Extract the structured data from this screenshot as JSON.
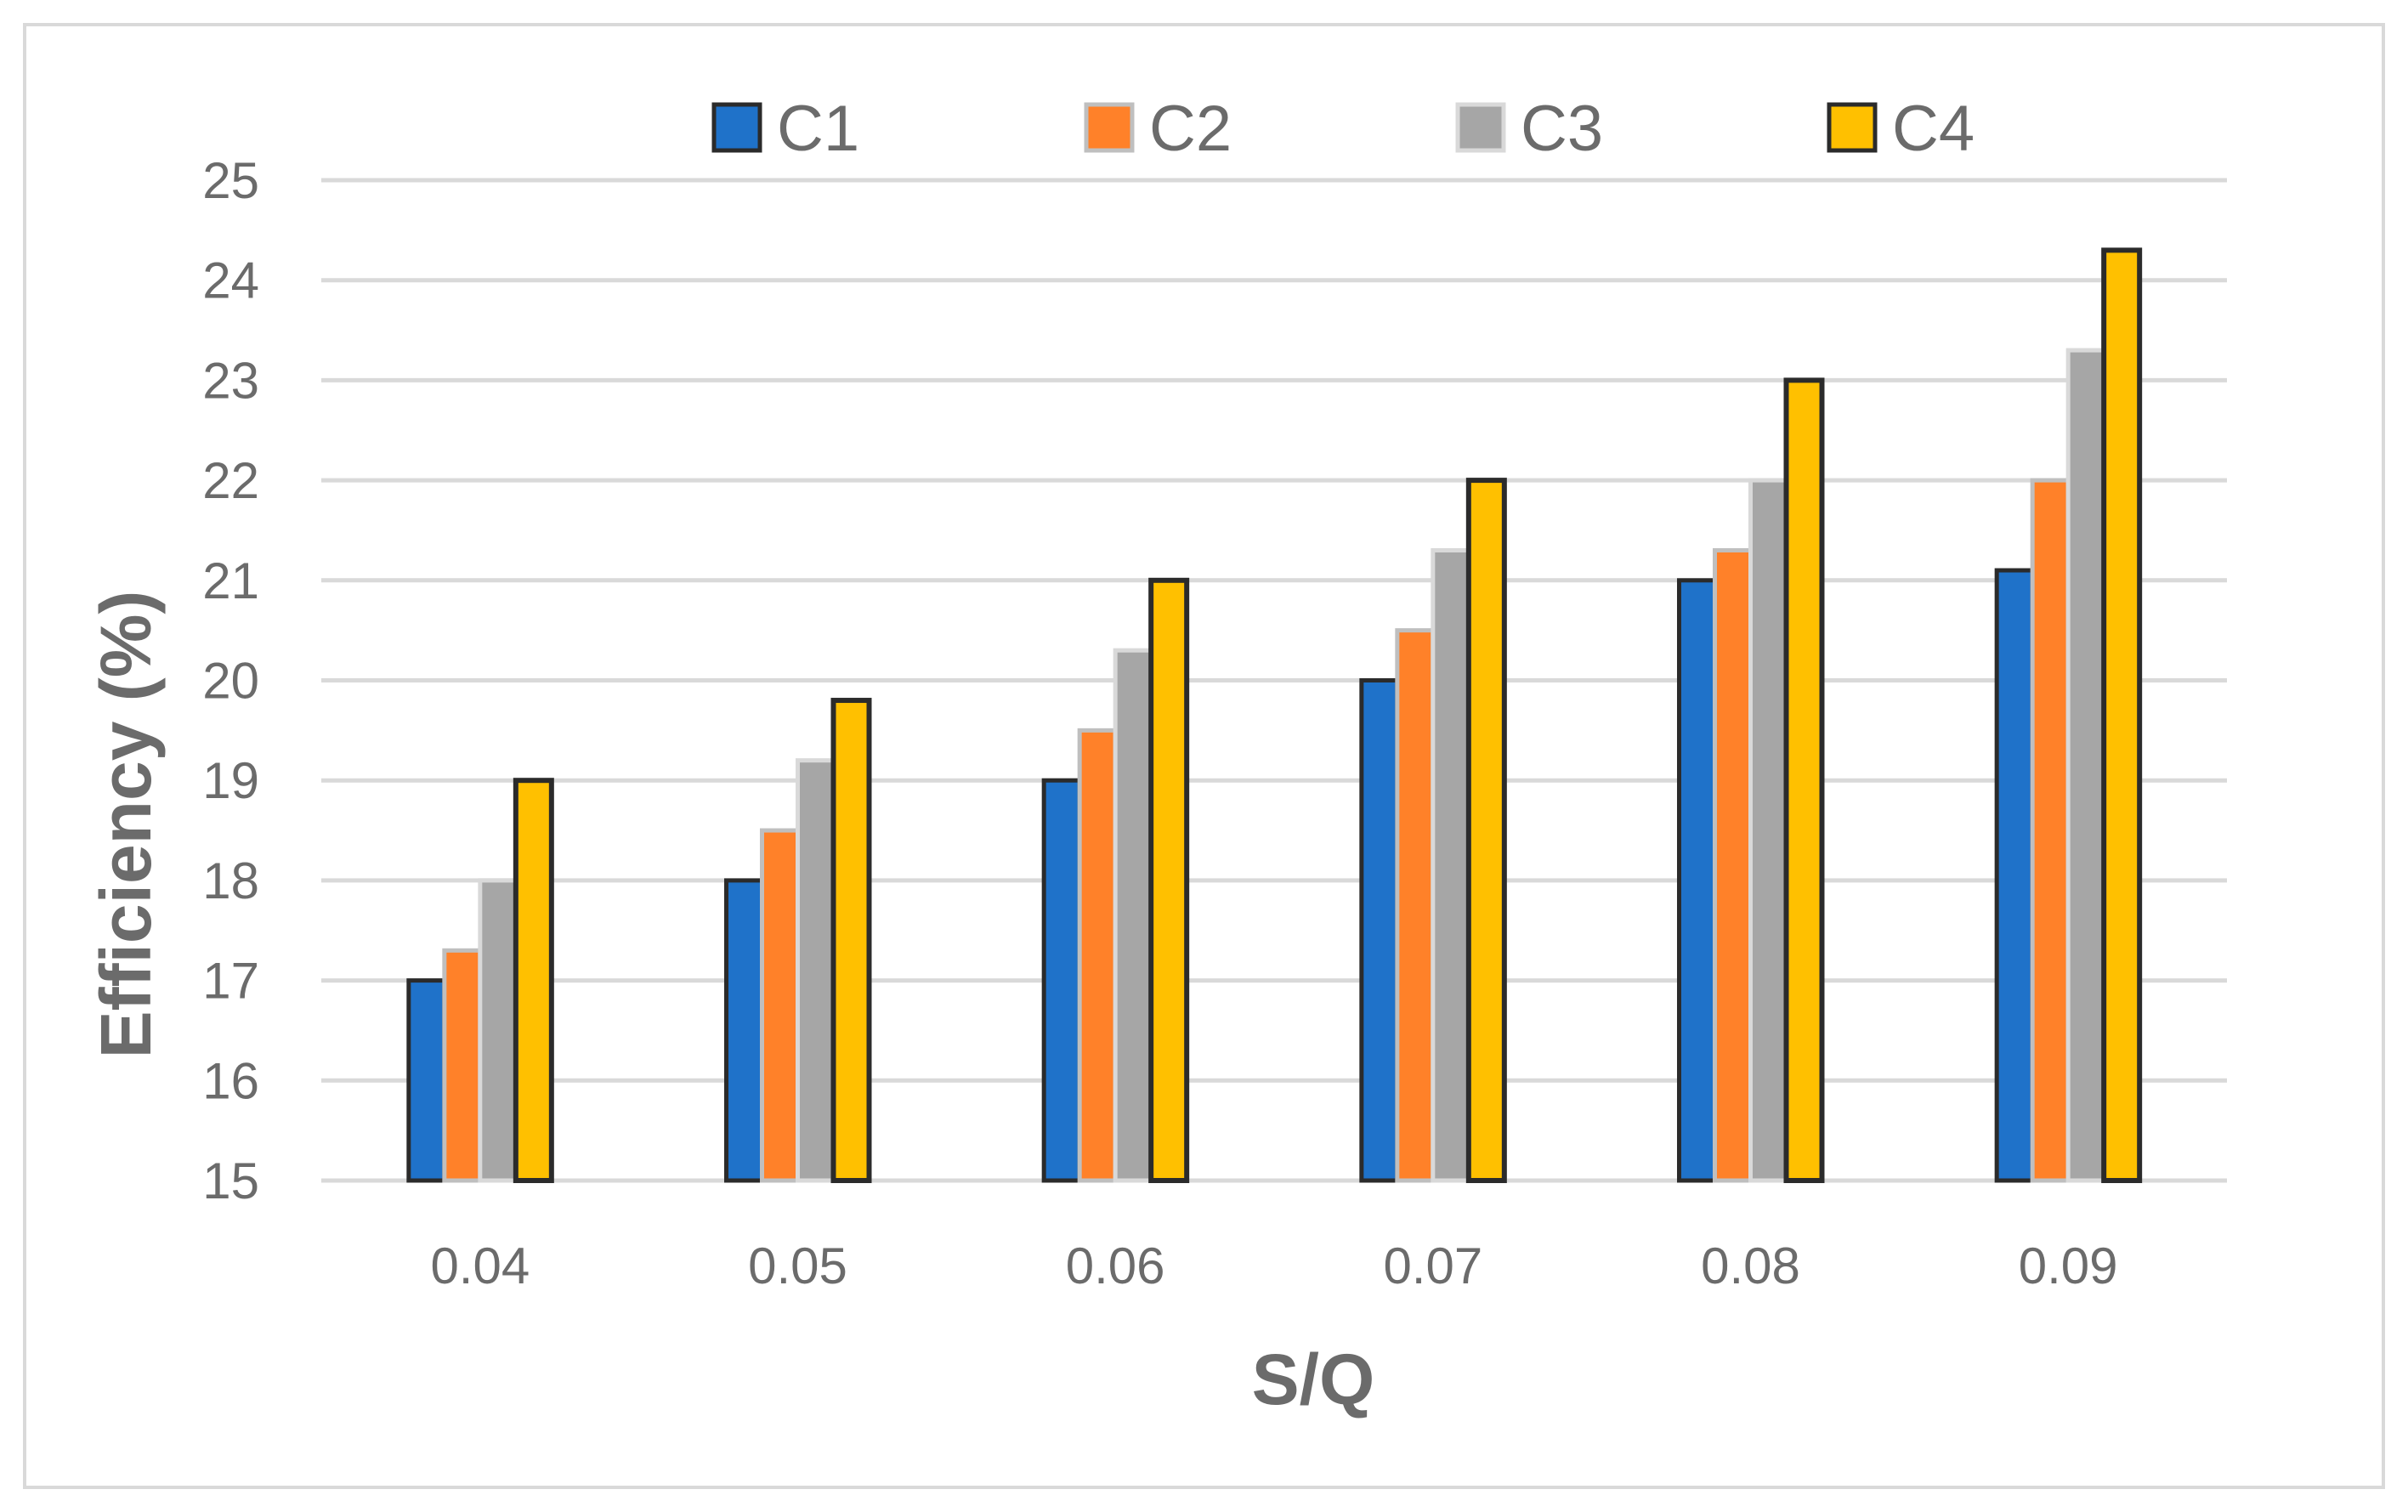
{
  "chart_data": {
    "type": "bar",
    "xlabel": "S/Q",
    "ylabel": "Efficiency (%)",
    "categories": [
      "0.04",
      "0.05",
      "0.06",
      "0.07",
      "0.08",
      "0.09"
    ],
    "ylim": [
      15,
      25
    ],
    "yticks": [
      "15",
      "16",
      "17",
      "18",
      "19",
      "20",
      "21",
      "22",
      "23",
      "24",
      "25"
    ],
    "grid": true,
    "legend_position": "top",
    "series": [
      {
        "name": "C1",
        "color": "#1f72c9",
        "values": [
          17,
          18,
          19,
          20,
          21,
          21.1
        ]
      },
      {
        "name": "C2",
        "color": "#ff8129",
        "values": [
          17.3,
          18.5,
          19.5,
          20.5,
          21.3,
          22
        ]
      },
      {
        "name": "C3",
        "color": "#a6a6a6",
        "values": [
          18,
          19.2,
          20.3,
          21.3,
          22,
          23.3
        ]
      },
      {
        "name": "C4",
        "color": "#ffc000",
        "values": [
          19,
          19.8,
          21,
          22,
          23,
          24.3
        ]
      }
    ]
  }
}
